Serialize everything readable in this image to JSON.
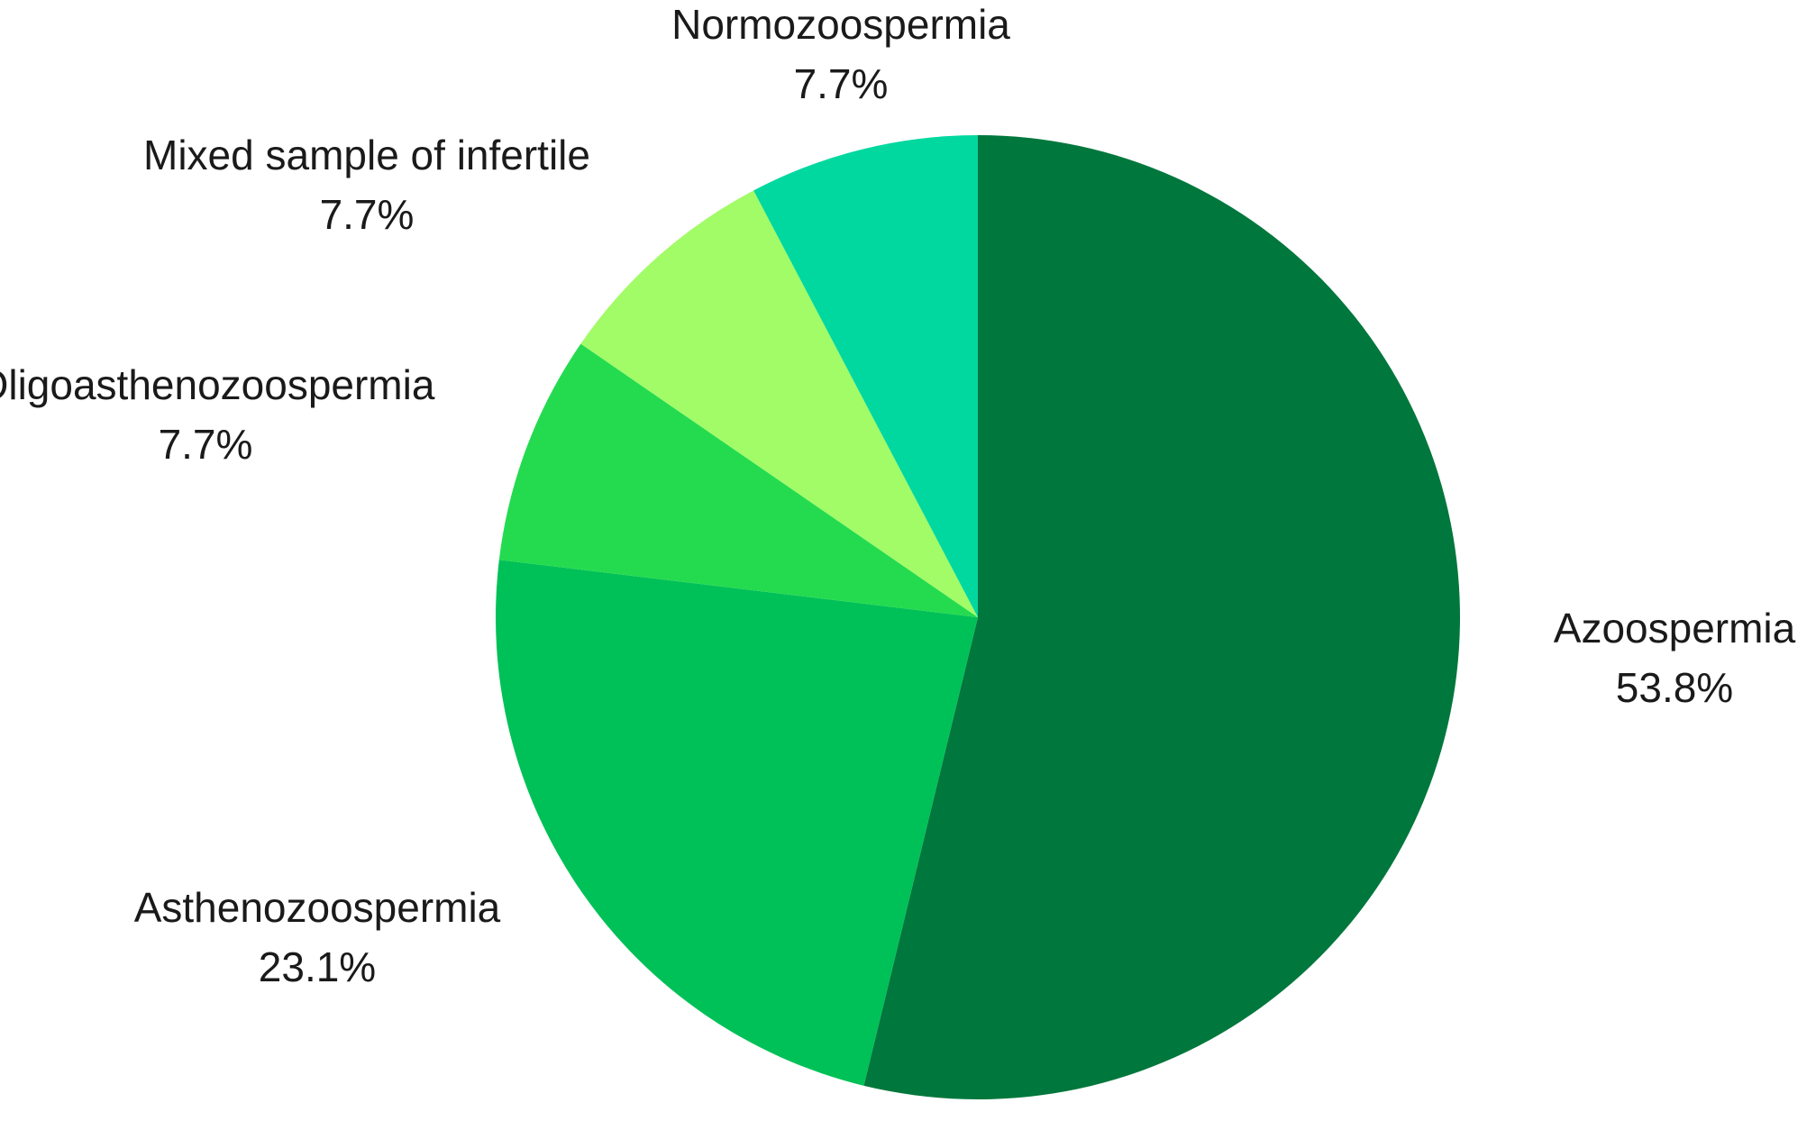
{
  "chart_data": {
    "type": "pie",
    "title": "",
    "slices": [
      {
        "label": "Azoospermia",
        "value": 53.8,
        "value_label": "53.8%",
        "color": "#00773c"
      },
      {
        "label": "Asthenozoospermia",
        "value": 23.1,
        "value_label": "23.1%",
        "color": "#00c157"
      },
      {
        "label": "Oligoasthenozoospermia",
        "value": 7.7,
        "value_label": "7.7%",
        "color": "#24db4f"
      },
      {
        "label": "Mixed sample of infertile",
        "value": 7.7,
        "value_label": "7.7%",
        "color": "#a1fc67"
      },
      {
        "label": "Normozoospermia",
        "value": 7.7,
        "value_label": "7.7%",
        "color": "#00d89f"
      }
    ],
    "start_angle_deg": 0,
    "direction": "clockwise",
    "legend": "none",
    "labels_position": "outside"
  }
}
